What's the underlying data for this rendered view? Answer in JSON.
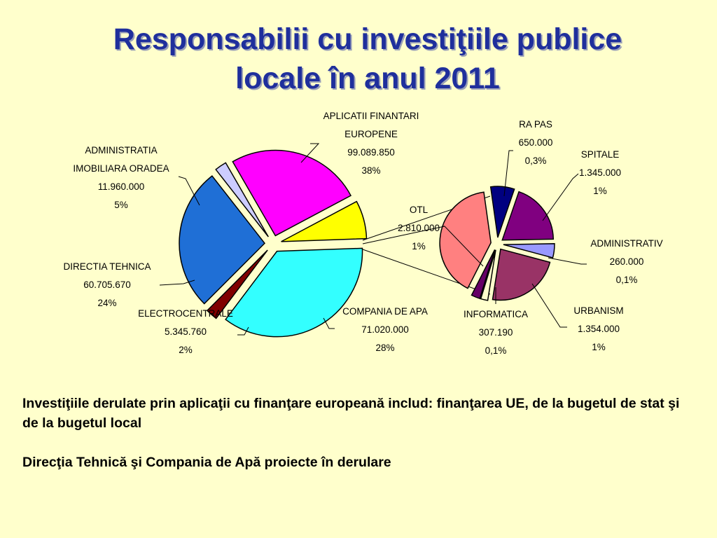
{
  "title": {
    "line1": "Responsabilii cu investiţiile publice",
    "line2": "locale în anul 2011"
  },
  "notes": [
    "Investiţiile derulate prin aplicaţii cu finanţare europeană includ: finanţarea UE, de la bugetul de stat şi de la bugetul local",
    "Direcţia Tehnică şi Compania de Apă proiecte în derulare"
  ],
  "chart_data": [
    {
      "type": "pie",
      "exploded": true,
      "slices": [
        {
          "label": [
            "APLICATII FINANTARI",
            "EUROPENE"
          ],
          "value": "99.089.850",
          "value_num": 99089850,
          "percent": "38%",
          "color": "#33FFFF"
        },
        {
          "label": [
            "OTL"
          ],
          "value": "2.810.000",
          "value_num": 2810000,
          "percent": "1%",
          "color": "#800000"
        },
        {
          "label": [
            "COMPANIA DE APA"
          ],
          "value": "71.020.000",
          "value_num": 71020000,
          "percent": "28%",
          "color": "#1F6FD6"
        },
        {
          "label": [
            "ELECTROCENTRALE"
          ],
          "value": "5.345.760",
          "value_num": 5345760,
          "percent": "2%",
          "color": "#CCCCFF"
        },
        {
          "label": [
            "DIRECTIA TEHNICA"
          ],
          "value": "60.705.670",
          "value_num": 60705670,
          "percent": "24%",
          "color": "#FF00FF"
        },
        {
          "label": [
            "ADMINISTRATIA",
            "IMOBILIARA ORADEA"
          ],
          "value": "11.960.000",
          "value_num": 11960000,
          "percent": "5%",
          "color": "#FFFF00"
        }
      ]
    },
    {
      "type": "pie",
      "exploded": true,
      "slices": [
        {
          "label": [
            "RA PAS"
          ],
          "value": "650.000",
          "value_num": 650000,
          "percent": "0,3%",
          "color": "#000080"
        },
        {
          "label": [
            "SPITALE"
          ],
          "value": "1.345.000",
          "value_num": 1345000,
          "percent": "1%",
          "color": "#800080"
        },
        {
          "label": [
            "ADMINISTRATIV"
          ],
          "value": "260.000",
          "value_num": 260000,
          "percent": "0,1%",
          "color": "#9999FF"
        },
        {
          "label": [
            "URBANISM"
          ],
          "value": "1.354.000",
          "value_num": 1354000,
          "percent": "1%",
          "color": "#993366"
        },
        {
          "label": [
            "INFORMATICA"
          ],
          "value": "307.190",
          "value_num": 307190,
          "percent": "0,1%",
          "color": "#FFFFCC"
        },
        {
          "label": [
            "OTL"
          ],
          "value": "2.810.000",
          "value_num": 2810000,
          "percent": "1%",
          "color": "#660066"
        },
        {
          "label": [],
          "value": "",
          "value_num": 2800000,
          "percent": "",
          "color": "#FF8080"
        }
      ]
    }
  ]
}
